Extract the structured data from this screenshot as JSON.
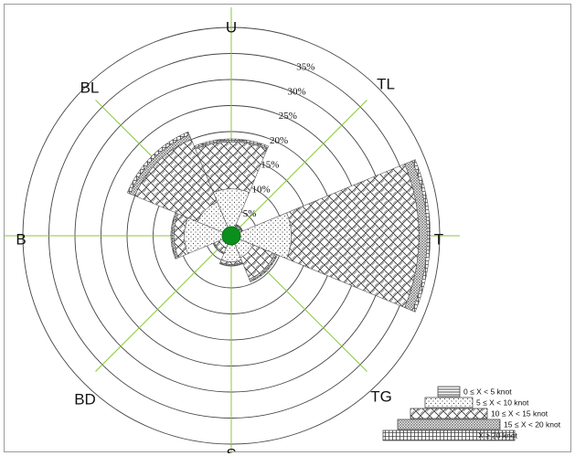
{
  "chart_data": {
    "type": "wind_rose",
    "directions": [
      "U",
      "TL",
      "T",
      "TG",
      "S",
      "BD",
      "B",
      "BL"
    ],
    "rings": [
      {
        "value": 5,
        "label": "5%"
      },
      {
        "value": 10,
        "label": "10%"
      },
      {
        "value": 15,
        "label": "15%"
      },
      {
        "value": 20,
        "label": "20%"
      },
      {
        "value": 25,
        "label": "25%"
      },
      {
        "value": 30,
        "label": "30%"
      },
      {
        "value": 35,
        "label": "35%"
      }
    ],
    "rmax": 40,
    "speed_classes": [
      {
        "label": "0 ≤ X < 5 knot",
        "pattern": "lines"
      },
      {
        "label": "5 ≤ X < 10 knot",
        "pattern": "dots"
      },
      {
        "label": "10 ≤ X < 15 knot",
        "pattern": "weave"
      },
      {
        "label": "15 ≤ X < 20 knot",
        "pattern": "dense"
      },
      {
        "label": "X ≥ 20 knot",
        "pattern": "grid"
      }
    ],
    "series": [
      {
        "direction": "U",
        "values": [
          1.0,
          9.0,
          18.0,
          18.3,
          18.6
        ]
      },
      {
        "direction": "TL",
        "values": [
          1.0,
          2.0,
          2.2,
          2.3,
          2.4
        ]
      },
      {
        "direction": "T",
        "values": [
          1.5,
          11.5,
          36.0,
          37.6,
          38.2
        ]
      },
      {
        "direction": "TG",
        "values": [
          1.0,
          4.5,
          9.0,
          9.4,
          9.6
        ]
      },
      {
        "direction": "S",
        "values": [
          1.0,
          5.0,
          5.5,
          5.7,
          5.8
        ]
      },
      {
        "direction": "BD",
        "values": [
          1.0,
          2.5,
          3.5,
          3.7,
          3.8
        ]
      },
      {
        "direction": "B",
        "values": [
          1.2,
          9.0,
          11.0,
          11.4,
          11.6
        ]
      },
      {
        "direction": "BL",
        "values": [
          1.0,
          7.0,
          20.0,
          21.0,
          21.6
        ]
      }
    ],
    "center_color": "#0a8f1c",
    "axis_color": "#8cc63f"
  }
}
